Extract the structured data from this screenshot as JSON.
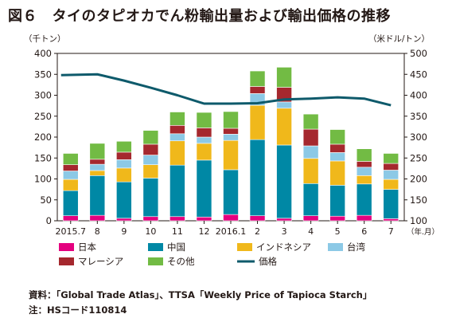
{
  "title": "図６　タイのタピオカでん粉輸出量および輸出価格の推移",
  "chart_data": {
    "type": "bar",
    "stacked": true,
    "categories": [
      "2015.7",
      "8",
      "9",
      "10",
      "11",
      "12",
      "2016.1",
      "2",
      "3",
      "4",
      "5",
      "6",
      "7"
    ],
    "x_unit": "（年.月）",
    "y_left": {
      "unit": "（千トン）",
      "range": [
        0,
        400
      ],
      "ticks": [
        0,
        50,
        100,
        150,
        200,
        250,
        300,
        350,
        400
      ]
    },
    "y_right": {
      "unit": "（米ドル/トン）",
      "range": [
        100,
        500
      ],
      "ticks": [
        100,
        150,
        200,
        250,
        300,
        350,
        400,
        450,
        500
      ]
    },
    "grid": false,
    "legend_position": "bottom",
    "series": [
      {
        "name": "日本",
        "color": "#e4007f",
        "axis": "left",
        "values": [
          12,
          13,
          6,
          10,
          10,
          9,
          15,
          12,
          6,
          12,
          11,
          13,
          5
        ]
      },
      {
        "name": "中国",
        "color": "#0088a5",
        "axis": "left",
        "values": [
          60,
          95,
          87,
          92,
          123,
          136,
          107,
          182,
          175,
          77,
          74,
          75,
          70
        ]
      },
      {
        "name": "インドネシア",
        "color": "#f0b81b",
        "axis": "left",
        "values": [
          27,
          12,
          33,
          32,
          58,
          40,
          70,
          82,
          88,
          60,
          58,
          20,
          24
        ]
      },
      {
        "name": "台湾",
        "color": "#8cc9e6",
        "axis": "left",
        "values": [
          20,
          15,
          20,
          23,
          17,
          15,
          15,
          28,
          15,
          30,
          20,
          20,
          22
        ]
      },
      {
        "name": "マレーシア",
        "color": "#a5282e",
        "axis": "left",
        "values": [
          15,
          12,
          18,
          26,
          20,
          22,
          14,
          17,
          35,
          40,
          20,
          14,
          16
        ]
      },
      {
        "name": "その他",
        "color": "#72bb44",
        "axis": "left",
        "values": [
          27,
          38,
          26,
          33,
          32,
          37,
          40,
          37,
          48,
          36,
          35,
          30,
          24
        ]
      },
      {
        "name": "価格",
        "type": "line",
        "color": "#0e5a6b",
        "axis": "right",
        "values": [
          448,
          450,
          435,
          418,
          400,
          380,
          380,
          381,
          390,
          392,
          395,
          392,
          376
        ]
      }
    ]
  },
  "notes": {
    "source": "資料：「Global Trade Atlas」、TTSA「Weekly Price of  Tapioca Starch」",
    "note": "注：HSコード110814"
  }
}
